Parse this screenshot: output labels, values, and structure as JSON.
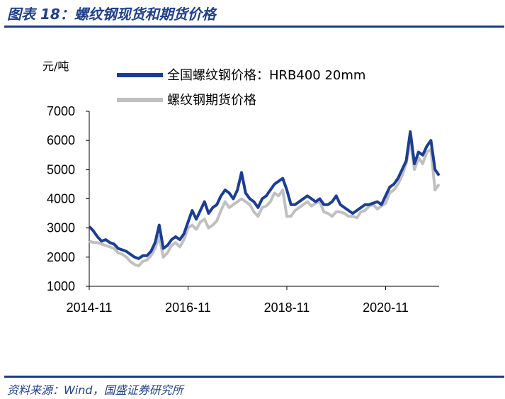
{
  "header": {
    "title": "图表 18：螺纹钢现货和期货价格"
  },
  "footer": {
    "source": "资料来源：Wind，国盛证券研究所"
  },
  "colors": {
    "accent": "#1c3c8c",
    "spot": "#1b3d96",
    "futures": "#c0c0c0"
  },
  "chart_data": {
    "type": "line",
    "ylabel": "元/吨",
    "xlabel": "",
    "ylim": [
      1000,
      7000
    ],
    "yticks": [
      1000,
      2000,
      3000,
      4000,
      5000,
      6000,
      7000
    ],
    "xticks": [
      "2014-11",
      "2016-11",
      "2018-11",
      "2020-11"
    ],
    "x_range": [
      "2014-11",
      "2021-12"
    ],
    "legend_position": "top",
    "grid": false,
    "series": [
      {
        "name": "全国螺纹钢价格：HRB400 20mm",
        "color": "#1b3d96",
        "points": [
          [
            "2014-11",
            3050
          ],
          [
            "2014-12",
            2900
          ],
          [
            "2015-01",
            2700
          ],
          [
            "2015-02",
            2550
          ],
          [
            "2015-03",
            2600
          ],
          [
            "2015-04",
            2500
          ],
          [
            "2015-05",
            2450
          ],
          [
            "2015-06",
            2300
          ],
          [
            "2015-07",
            2250
          ],
          [
            "2015-08",
            2200
          ],
          [
            "2015-09",
            2100
          ],
          [
            "2015-10",
            2000
          ],
          [
            "2015-11",
            1950
          ],
          [
            "2015-12",
            2050
          ],
          [
            "2016-01",
            2050
          ],
          [
            "2016-02",
            2200
          ],
          [
            "2016-03",
            2500
          ],
          [
            "2016-04",
            3100
          ],
          [
            "2016-05",
            2300
          ],
          [
            "2016-06",
            2400
          ],
          [
            "2016-07",
            2600
          ],
          [
            "2016-08",
            2700
          ],
          [
            "2016-09",
            2600
          ],
          [
            "2016-10",
            2800
          ],
          [
            "2016-11",
            3200
          ],
          [
            "2016-12",
            3600
          ],
          [
            "2017-01",
            3300
          ],
          [
            "2017-02",
            3600
          ],
          [
            "2017-03",
            3900
          ],
          [
            "2017-04",
            3500
          ],
          [
            "2017-05",
            3700
          ],
          [
            "2017-06",
            3800
          ],
          [
            "2017-07",
            4100
          ],
          [
            "2017-08",
            4300
          ],
          [
            "2017-09",
            4200
          ],
          [
            "2017-10",
            4000
          ],
          [
            "2017-11",
            4300
          ],
          [
            "2017-12",
            4900
          ],
          [
            "2018-01",
            4200
          ],
          [
            "2018-02",
            4000
          ],
          [
            "2018-03",
            3900
          ],
          [
            "2018-04",
            3700
          ],
          [
            "2018-05",
            4000
          ],
          [
            "2018-06",
            4100
          ],
          [
            "2018-07",
            4300
          ],
          [
            "2018-08",
            4500
          ],
          [
            "2018-09",
            4600
          ],
          [
            "2018-10",
            4700
          ],
          [
            "2018-11",
            4300
          ],
          [
            "2018-12",
            3800
          ],
          [
            "2019-01",
            3800
          ],
          [
            "2019-02",
            3900
          ],
          [
            "2019-03",
            4000
          ],
          [
            "2019-04",
            4100
          ],
          [
            "2019-05",
            4000
          ],
          [
            "2019-06",
            3900
          ],
          [
            "2019-07",
            4000
          ],
          [
            "2019-08",
            3800
          ],
          [
            "2019-09",
            3800
          ],
          [
            "2019-10",
            3900
          ],
          [
            "2019-11",
            4100
          ],
          [
            "2019-12",
            3800
          ],
          [
            "2020-01",
            3700
          ],
          [
            "2020-02",
            3600
          ],
          [
            "2020-03",
            3500
          ],
          [
            "2020-04",
            3600
          ],
          [
            "2020-05",
            3700
          ],
          [
            "2020-06",
            3800
          ],
          [
            "2020-07",
            3800
          ],
          [
            "2020-08",
            3850
          ],
          [
            "2020-09",
            3900
          ],
          [
            "2020-10",
            3800
          ],
          [
            "2020-11",
            4100
          ],
          [
            "2020-12",
            4400
          ],
          [
            "2021-01",
            4500
          ],
          [
            "2021-02",
            4700
          ],
          [
            "2021-03",
            5000
          ],
          [
            "2021-04",
            5300
          ],
          [
            "2021-05",
            6300
          ],
          [
            "2021-06",
            5200
          ],
          [
            "2021-07",
            5600
          ],
          [
            "2021-08",
            5500
          ],
          [
            "2021-09",
            5800
          ],
          [
            "2021-10",
            6000
          ],
          [
            "2021-11",
            5000
          ],
          [
            "2021-12",
            4800
          ]
        ]
      },
      {
        "name": "螺纹钢期货价格",
        "color": "#c0c0c0",
        "points": [
          [
            "2014-11",
            2550
          ],
          [
            "2014-12",
            2500
          ],
          [
            "2015-01",
            2500
          ],
          [
            "2015-02",
            2450
          ],
          [
            "2015-03",
            2400
          ],
          [
            "2015-04",
            2350
          ],
          [
            "2015-05",
            2300
          ],
          [
            "2015-06",
            2150
          ],
          [
            "2015-07",
            2100
          ],
          [
            "2015-08",
            2000
          ],
          [
            "2015-09",
            1850
          ],
          [
            "2015-10",
            1750
          ],
          [
            "2015-11",
            1700
          ],
          [
            "2015-12",
            1850
          ],
          [
            "2016-01",
            1900
          ],
          [
            "2016-02",
            2050
          ],
          [
            "2016-03",
            2300
          ],
          [
            "2016-04",
            2700
          ],
          [
            "2016-05",
            2000
          ],
          [
            "2016-06",
            2150
          ],
          [
            "2016-07",
            2400
          ],
          [
            "2016-08",
            2500
          ],
          [
            "2016-09",
            2350
          ],
          [
            "2016-10",
            2600
          ],
          [
            "2016-11",
            3000
          ],
          [
            "2016-12",
            3100
          ],
          [
            "2017-01",
            2950
          ],
          [
            "2017-02",
            3200
          ],
          [
            "2017-03",
            3300
          ],
          [
            "2017-04",
            3000
          ],
          [
            "2017-05",
            3100
          ],
          [
            "2017-06",
            3250
          ],
          [
            "2017-07",
            3600
          ],
          [
            "2017-08",
            3900
          ],
          [
            "2017-09",
            3700
          ],
          [
            "2017-10",
            3800
          ],
          [
            "2017-11",
            3900
          ],
          [
            "2017-12",
            4000
          ],
          [
            "2018-01",
            3900
          ],
          [
            "2018-02",
            3800
          ],
          [
            "2018-03",
            3550
          ],
          [
            "2018-04",
            3400
          ],
          [
            "2018-05",
            3700
          ],
          [
            "2018-06",
            3750
          ],
          [
            "2018-07",
            3900
          ],
          [
            "2018-08",
            4200
          ],
          [
            "2018-09",
            4100
          ],
          [
            "2018-10",
            4300
          ],
          [
            "2018-11",
            3400
          ],
          [
            "2018-12",
            3400
          ],
          [
            "2019-01",
            3600
          ],
          [
            "2019-02",
            3700
          ],
          [
            "2019-03",
            3800
          ],
          [
            "2019-04",
            3900
          ],
          [
            "2019-05",
            3750
          ],
          [
            "2019-06",
            3850
          ],
          [
            "2019-07",
            3900
          ],
          [
            "2019-08",
            3550
          ],
          [
            "2019-09",
            3500
          ],
          [
            "2019-10",
            3400
          ],
          [
            "2019-11",
            3550
          ],
          [
            "2019-12",
            3550
          ],
          [
            "2020-01",
            3500
          ],
          [
            "2020-02",
            3400
          ],
          [
            "2020-03",
            3400
          ],
          [
            "2020-04",
            3350
          ],
          [
            "2020-05",
            3550
          ],
          [
            "2020-06",
            3600
          ],
          [
            "2020-07",
            3750
          ],
          [
            "2020-08",
            3800
          ],
          [
            "2020-09",
            3650
          ],
          [
            "2020-10",
            3750
          ],
          [
            "2020-11",
            3850
          ],
          [
            "2020-12",
            4200
          ],
          [
            "2021-01",
            4300
          ],
          [
            "2021-02",
            4500
          ],
          [
            "2021-03",
            4800
          ],
          [
            "2021-04",
            5200
          ],
          [
            "2021-05",
            6000
          ],
          [
            "2021-06",
            5000
          ],
          [
            "2021-07",
            5400
          ],
          [
            "2021-08",
            5200
          ],
          [
            "2021-09",
            5600
          ],
          [
            "2021-10",
            5700
          ],
          [
            "2021-11",
            4300
          ],
          [
            "2021-12",
            4500
          ]
        ]
      }
    ]
  }
}
